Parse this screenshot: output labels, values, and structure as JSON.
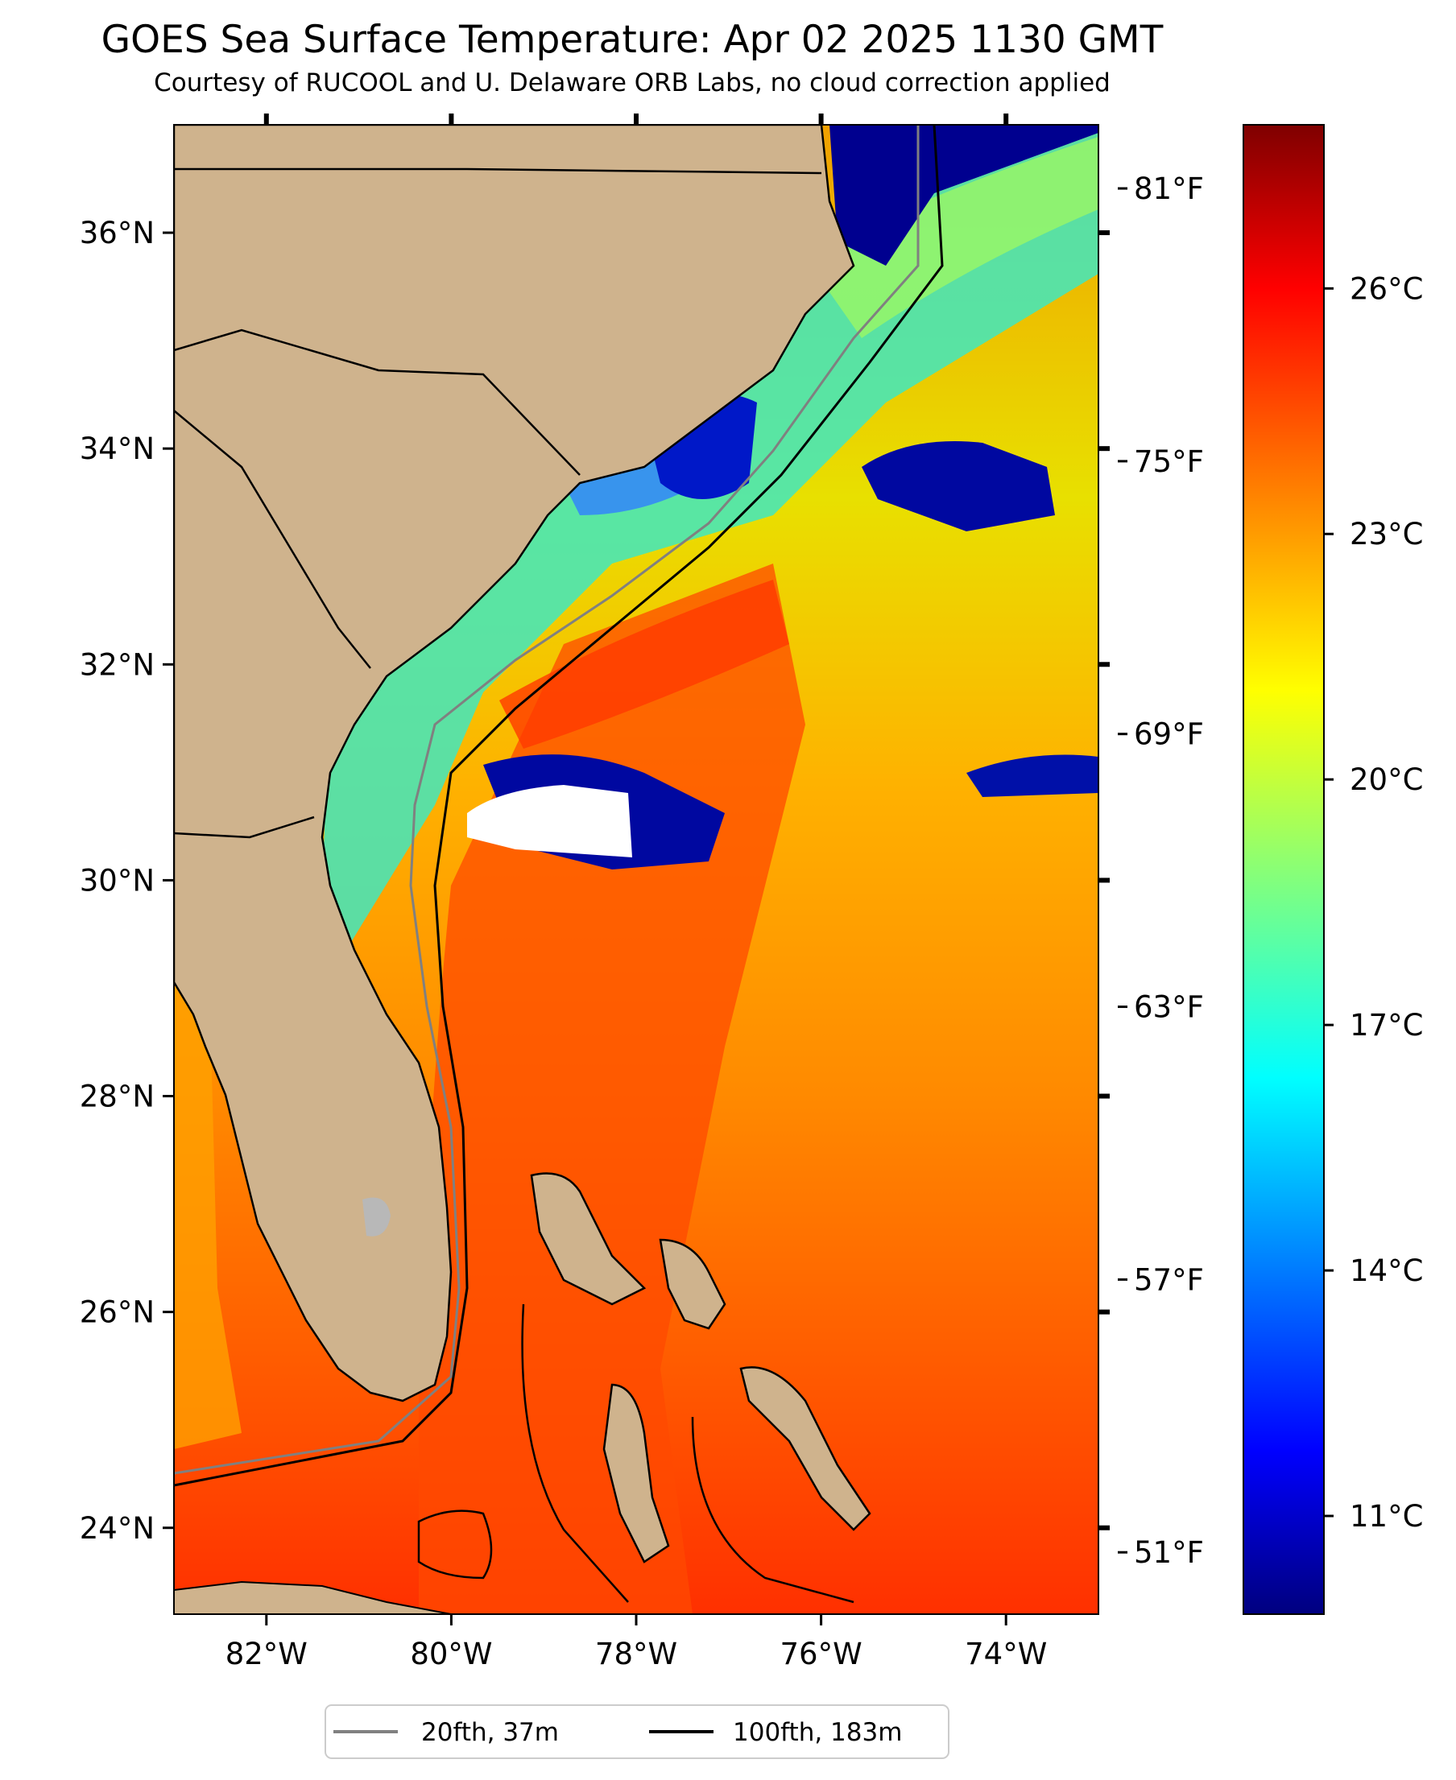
{
  "title": "GOES Sea Surface Temperature: Apr 02 2025 1130 GMT",
  "subtitle": "Courtesy of RUCOOL and U. Delaware ORB Labs, no cloud correction applied",
  "map": {
    "lon_range": [
      -83.0,
      -73.0
    ],
    "lat_range": [
      23.2,
      37.0
    ],
    "lon_ticks": [
      {
        "value": -82,
        "label": "82°W"
      },
      {
        "value": -80,
        "label": "80°W"
      },
      {
        "value": -78,
        "label": "78°W"
      },
      {
        "value": -76,
        "label": "76°W"
      },
      {
        "value": -74,
        "label": "74°W"
      }
    ],
    "lat_ticks": [
      {
        "value": 24,
        "label": "24°N"
      },
      {
        "value": 26,
        "label": "26°N"
      },
      {
        "value": 28,
        "label": "28°N"
      },
      {
        "value": 30,
        "label": "30°N"
      },
      {
        "value": 32,
        "label": "32°N"
      },
      {
        "value": 34,
        "label": "34°N"
      },
      {
        "value": 36,
        "label": "36°N"
      }
    ],
    "land_color": "#cfb38d",
    "contour_20fth_color": "#808080",
    "contour_100fth_color": "#000000"
  },
  "colorbar": {
    "colormap": "jet",
    "celsius_range": [
      9.8,
      28.0
    ],
    "celsius_ticks": [
      {
        "value": 11,
        "label": "11°C"
      },
      {
        "value": 14,
        "label": "14°C"
      },
      {
        "value": 17,
        "label": "17°C"
      },
      {
        "value": 20,
        "label": "20°C"
      },
      {
        "value": 23,
        "label": "23°C"
      },
      {
        "value": 26,
        "label": "26°C"
      }
    ],
    "fahrenheit_ticks": [
      {
        "value": 51,
        "label": "51°F"
      },
      {
        "value": 57,
        "label": "57°F"
      },
      {
        "value": 63,
        "label": "63°F"
      },
      {
        "value": 69,
        "label": "69°F"
      },
      {
        "value": 75,
        "label": "75°F"
      },
      {
        "value": 81,
        "label": "81°F"
      }
    ]
  },
  "legend": {
    "items": [
      {
        "label": "20fth, 37m",
        "color": "#808080"
      },
      {
        "label": "100fth, 183m",
        "color": "#000000"
      }
    ]
  }
}
